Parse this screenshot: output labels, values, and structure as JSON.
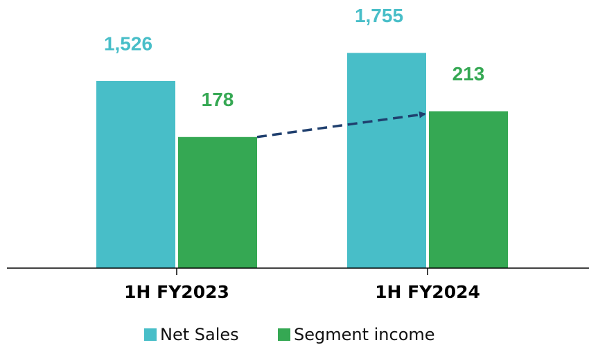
{
  "chart_data": {
    "type": "bar",
    "categories": [
      "1H FY2023",
      "1H FY2024"
    ],
    "series": [
      {
        "name": "Net Sales",
        "color": "#48bec8",
        "values": [
          1526,
          1755
        ],
        "value_labels": [
          "1,526",
          "1,755"
        ]
      },
      {
        "name": "Segment income",
        "color": "#35a853",
        "values": [
          178,
          213
        ],
        "axis": "y2"
      }
    ],
    "ylim": [
      0,
      2000
    ],
    "y2lim": [
      0,
      333
    ],
    "legend": "bottom"
  }
}
